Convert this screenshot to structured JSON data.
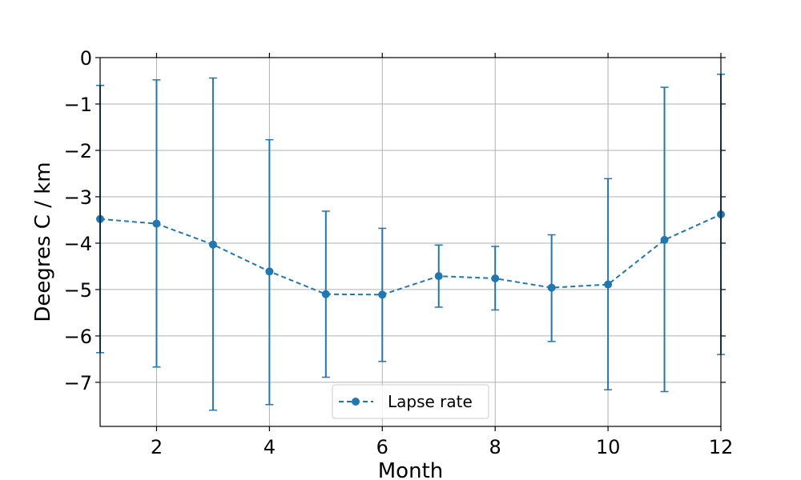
{
  "chart_data": {
    "type": "line",
    "title": "",
    "xlabel": "Month",
    "ylabel": "Deegres C / km",
    "xlim": [
      1,
      12
    ],
    "ylim": [
      -7.95,
      0
    ],
    "grid": true,
    "legend_position": "bottom-center",
    "x_ticks": [
      2,
      4,
      6,
      8,
      10,
      12
    ],
    "x_tick_labels": [
      "2",
      "4",
      "6",
      "8",
      "10",
      "12"
    ],
    "y_ticks": [
      0,
      -1,
      -2,
      -3,
      -4,
      -5,
      -6,
      -7
    ],
    "y_tick_labels": [
      "0",
      "−1",
      "−2",
      "−3",
      "−4",
      "−5",
      "−6",
      "−7"
    ],
    "series": [
      {
        "name": "Lapse rate",
        "color": "#1f77b4",
        "line_style": "dashed",
        "marker": "circle",
        "x": [
          1,
          2,
          3,
          4,
          5,
          6,
          7,
          8,
          9,
          10,
          11,
          12
        ],
        "y": [
          -3.48,
          -3.58,
          -4.03,
          -4.61,
          -5.1,
          -5.11,
          -4.71,
          -4.76,
          -4.96,
          -4.89,
          -3.93,
          -3.38
        ],
        "error_low": [
          -6.36,
          -6.67,
          -7.6,
          -7.48,
          -6.89,
          -6.55,
          -5.38,
          -5.44,
          -6.12,
          -7.16,
          -7.2,
          -6.4
        ],
        "error_high": [
          -0.6,
          -0.48,
          -0.44,
          -1.77,
          -3.31,
          -3.68,
          -4.04,
          -4.07,
          -3.82,
          -2.61,
          -0.64,
          -0.36
        ]
      }
    ]
  }
}
